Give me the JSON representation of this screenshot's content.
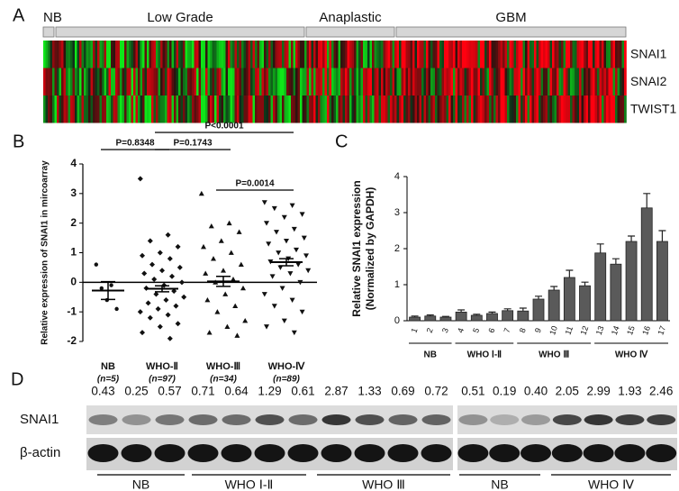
{
  "panel_labels": [
    "A",
    "B",
    "C",
    "D"
  ],
  "heatmap": {
    "groups": [
      "NB",
      "Low Grade",
      "Anaplastic",
      "GBM"
    ],
    "genes": [
      "SNAI1",
      "SNAI2",
      "TWIST1"
    ]
  },
  "chart_data": [
    {
      "type": "dot",
      "y_label": "Relative expression of SNAI1 in mircoarray",
      "categories": [
        "NB",
        "WHO-Ⅱ",
        "WHO-Ⅲ",
        "WHO-Ⅳ"
      ],
      "n_labels": [
        "(n=5)",
        "(n=97)",
        "(n=34)",
        "(n=89)"
      ],
      "points": [
        [
          0.6,
          -0.1,
          -0.2,
          -0.9,
          -0.6
        ],
        [
          3.5,
          1.6,
          1.4,
          1.2,
          1.0,
          0.9,
          0.8,
          0.6,
          0.5,
          0.4,
          0.3,
          0.2,
          0.1,
          0.0,
          -0.1,
          -0.2,
          -0.3,
          -0.4,
          -0.5,
          -0.6,
          -0.7,
          -0.8,
          -0.9,
          -1.0,
          -1.1,
          -1.2,
          -1.4,
          -1.5,
          -1.7,
          -1.9
        ],
        [
          3.0,
          2.0,
          1.9,
          1.7,
          1.4,
          1.2,
          1.0,
          0.8,
          0.6,
          0.4,
          0.3,
          0.1,
          0.0,
          -0.2,
          -0.4,
          -0.6,
          -0.8,
          -1.0,
          -1.3,
          -1.5,
          -1.7,
          -1.8
        ],
        [
          2.7,
          2.6,
          2.5,
          2.3,
          2.2,
          2.0,
          1.8,
          1.7,
          1.5,
          1.4,
          1.3,
          1.1,
          1.0,
          0.9,
          0.8,
          0.7,
          0.6,
          0.5,
          0.4,
          0.3,
          0.2,
          0.0,
          -0.2,
          -0.4,
          -0.6,
          -0.8,
          -1.0,
          -1.3,
          -1.5,
          -1.7
        ]
      ],
      "means": [
        -0.28,
        -0.22,
        0.03,
        0.68
      ],
      "errors": [
        0.3,
        0.1,
        0.17,
        0.12
      ],
      "comparisons": [
        "P=0.8348",
        "P=0.1743",
        "P<0.0001",
        "P=0.0014"
      ],
      "ylim": [
        -2,
        4
      ],
      "yticks": [
        -2,
        -1,
        0,
        1,
        2,
        3,
        4
      ],
      "color": "#111111"
    },
    {
      "type": "bar",
      "y_label": [
        "Relative SNAI1 expression",
        "(Normalized by GAPDH)"
      ],
      "categories": [
        "1",
        "2",
        "3",
        "4",
        "5",
        "6",
        "7",
        "8",
        "9",
        "10",
        "11",
        "12",
        "13",
        "14",
        "15",
        "16",
        "17"
      ],
      "values": [
        0.1,
        0.13,
        0.1,
        0.24,
        0.15,
        0.2,
        0.28,
        0.27,
        0.6,
        0.85,
        1.2,
        0.97,
        1.88,
        1.57,
        2.2,
        3.13,
        2.2
      ],
      "errors": [
        0.03,
        0.03,
        0.02,
        0.06,
        0.03,
        0.04,
        0.05,
        0.08,
        0.08,
        0.1,
        0.2,
        0.1,
        0.25,
        0.15,
        0.15,
        0.4,
        0.3
      ],
      "groups": [
        "NB",
        "WHO Ⅰ-Ⅱ",
        "WHO Ⅲ",
        "WHO Ⅳ"
      ],
      "ylim": [
        0,
        4
      ],
      "yticks": [
        0,
        1,
        2,
        3,
        4
      ],
      "color": "#5a5a5a"
    }
  ],
  "blot": {
    "values": [
      "0.43",
      "0.25",
      "0.57",
      "0.71",
      "0.64",
      "1.29",
      "0.61",
      "2.87",
      "1.33",
      "0.69",
      "0.72",
      "0.51",
      "0.19",
      "0.40",
      "2.05",
      "2.99",
      "1.93",
      "2.46"
    ],
    "rows": [
      "SNAI1",
      "β-actin"
    ],
    "groups": [
      "NB",
      "WHO Ⅰ-Ⅱ",
      "WHO Ⅲ",
      "NB",
      "WHO Ⅳ"
    ]
  }
}
